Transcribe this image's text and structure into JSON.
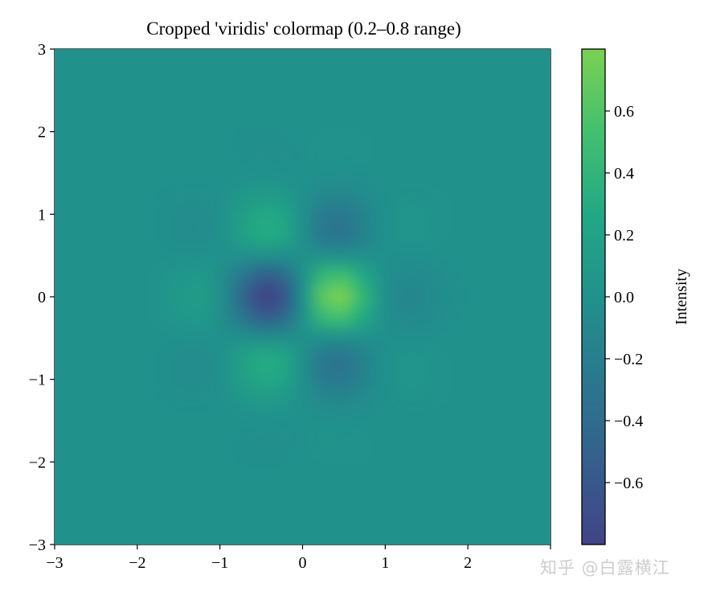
{
  "chart_data": {
    "type": "heatmap",
    "title": "Cropped 'viridis' colormap (0.2–0.8 range)",
    "xlabel": "",
    "ylabel": "",
    "xlim": [
      -3,
      3
    ],
    "ylim": [
      -3,
      3
    ],
    "x_ticks": [
      "−3",
      "−2",
      "−1",
      "0",
      "1",
      "2"
    ],
    "y_ticks": [
      "−3",
      "−2",
      "−1",
      "0",
      "1",
      "2",
      "3"
    ],
    "grid": false,
    "colormap": "viridis",
    "colormap_range": [
      0.2,
      0.8
    ],
    "colormap_stops": [
      "#414487",
      "#355f8d",
      "#2a788e",
      "#21918c",
      "#22a884",
      "#44bf70",
      "#7ad151"
    ],
    "clim": [
      -0.8,
      0.8
    ],
    "colorbar": {
      "label": "Intensity",
      "placement": "right",
      "ticks": [
        -0.6,
        -0.4,
        -0.2,
        0.0,
        0.2,
        0.4,
        0.6
      ],
      "tick_labels": [
        "−0.6",
        "−0.4",
        "−0.2",
        "0.0",
        "0.2",
        "0.4",
        "0.6"
      ]
    },
    "x": [
      -3,
      -2.75,
      -2.5,
      -2.25,
      -2,
      -1.75,
      -1.5,
      -1.25,
      -1,
      -0.75,
      -0.5,
      -0.25,
      0,
      0.25,
      0.5,
      0.75,
      1,
      1.25,
      1.5,
      1.75,
      2,
      2.25,
      2.5,
      2.75,
      3
    ],
    "y": [
      -3,
      -2.75,
      -2.5,
      -2.25,
      -2,
      -1.75,
      -1.5,
      -1.25,
      -1,
      -0.75,
      -0.5,
      -0.25,
      0,
      0.25,
      0.5,
      0.75,
      1,
      1.25,
      1.5,
      1.75,
      2,
      2.25,
      2.5,
      2.75,
      3
    ],
    "z": [
      [
        0,
        0,
        0,
        0,
        0,
        0,
        0,
        0,
        0,
        0,
        0,
        0,
        0,
        0,
        0,
        0,
        0,
        0,
        0,
        0,
        0,
        0,
        0,
        0,
        0
      ],
      [
        0,
        0,
        0,
        0,
        0,
        0,
        0,
        0,
        0,
        0,
        0,
        0,
        0,
        0,
        0,
        0,
        0,
        0,
        0,
        0,
        0,
        0,
        0,
        0,
        0
      ],
      [
        0,
        0,
        0,
        0,
        0,
        0,
        0,
        0,
        0,
        0,
        0,
        0,
        0,
        0,
        0,
        0,
        0,
        0,
        0,
        0,
        0,
        0,
        0,
        0,
        0
      ],
      [
        0,
        0,
        0,
        0,
        0,
        0,
        0,
        0,
        0,
        0,
        0,
        0,
        0,
        0,
        0,
        0,
        0,
        0,
        0,
        0,
        0,
        0,
        0,
        0,
        0
      ],
      [
        0,
        0,
        0,
        0,
        0,
        0,
        0,
        0,
        0,
        -0.01,
        -0.01,
        -0.01,
        0,
        0.01,
        0.01,
        0.01,
        0,
        0,
        0,
        0,
        0,
        0,
        0,
        0,
        0
      ],
      [
        0,
        0,
        0,
        0,
        0,
        0,
        0,
        0,
        0,
        -0.01,
        -0.02,
        -0.02,
        0,
        0.02,
        0.02,
        0.01,
        0,
        0,
        0,
        0,
        0,
        0,
        0,
        0,
        0
      ],
      [
        0,
        0,
        0,
        0,
        0,
        0,
        0,
        0,
        0,
        0.01,
        0.02,
        0.01,
        0,
        -0.01,
        -0.02,
        -0.01,
        0,
        0,
        0,
        0,
        0,
        0,
        0,
        0,
        0
      ],
      [
        0,
        0,
        0,
        0,
        0,
        -0.01,
        -0.02,
        -0.02,
        0.01,
        0.08,
        0.13,
        0.11,
        0,
        -0.11,
        -0.13,
        -0.08,
        -0.01,
        0.02,
        0.02,
        0.01,
        0,
        0,
        0,
        0,
        0
      ],
      [
        0,
        0,
        0,
        0,
        0,
        -0.01,
        -0.04,
        -0.04,
        0.02,
        0.16,
        0.28,
        0.23,
        0,
        -0.23,
        -0.28,
        -0.16,
        -0.02,
        0.04,
        0.04,
        0.01,
        0,
        0,
        0,
        0,
        0
      ],
      [
        0,
        0,
        0,
        0,
        0,
        -0.01,
        -0.04,
        -0.04,
        0.02,
        0.16,
        0.28,
        0.23,
        0,
        -0.23,
        -0.28,
        -0.16,
        -0.02,
        0.04,
        0.04,
        0.01,
        0,
        0,
        0,
        0,
        0
      ],
      [
        0,
        0,
        0,
        0,
        0,
        0,
        0.01,
        0.01,
        0,
        -0.02,
        -0.04,
        -0.04,
        0,
        0.04,
        0.04,
        0.02,
        0,
        -0.01,
        -0.01,
        0,
        0,
        0,
        0,
        0,
        0
      ],
      [
        0,
        0,
        0,
        0,
        0,
        0.03,
        0.07,
        0.08,
        -0.04,
        -0.3,
        -0.53,
        -0.44,
        0,
        0.44,
        0.53,
        0.3,
        0.04,
        -0.08,
        -0.07,
        -0.03,
        0,
        0,
        0,
        0,
        0
      ],
      [
        0,
        0,
        0,
        0,
        0,
        0.04,
        0.1,
        0.12,
        -0.05,
        -0.44,
        -0.78,
        -0.64,
        0,
        0.64,
        0.78,
        0.44,
        0.05,
        -0.12,
        -0.1,
        -0.04,
        -0.01,
        0,
        0,
        0,
        0
      ],
      [
        0,
        0,
        0,
        0,
        0,
        0.03,
        0.07,
        0.08,
        -0.04,
        -0.3,
        -0.53,
        -0.44,
        0,
        0.44,
        0.53,
        0.3,
        0.04,
        -0.08,
        -0.07,
        -0.03,
        0,
        0,
        0,
        0,
        0
      ],
      [
        0,
        0,
        0,
        0,
        0,
        0,
        0.01,
        0.01,
        0,
        -0.02,
        -0.04,
        -0.04,
        0,
        0.04,
        0.04,
        0.02,
        0,
        -0.01,
        -0.01,
        0,
        0,
        0,
        0,
        0,
        0
      ],
      [
        0,
        0,
        0,
        0,
        0,
        -0.01,
        -0.04,
        -0.04,
        0.02,
        0.16,
        0.28,
        0.23,
        0,
        -0.23,
        -0.28,
        -0.16,
        -0.02,
        0.04,
        0.04,
        0.01,
        0,
        0,
        0,
        0,
        0
      ],
      [
        0,
        0,
        0,
        0,
        0,
        -0.01,
        -0.04,
        -0.04,
        0.02,
        0.16,
        0.28,
        0.23,
        0,
        -0.23,
        -0.28,
        -0.16,
        -0.02,
        0.04,
        0.04,
        0.01,
        0,
        0,
        0,
        0,
        0
      ],
      [
        0,
        0,
        0,
        0,
        0,
        -0.01,
        -0.02,
        -0.02,
        0.01,
        0.08,
        0.13,
        0.11,
        0,
        -0.11,
        -0.13,
        -0.08,
        -0.01,
        0.02,
        0.02,
        0.01,
        0,
        0,
        0,
        0,
        0
      ],
      [
        0,
        0,
        0,
        0,
        0,
        0,
        0,
        0,
        0,
        0.01,
        0.02,
        0.01,
        0,
        -0.01,
        -0.02,
        -0.01,
        0,
        0,
        0,
        0,
        0,
        0,
        0,
        0,
        0
      ],
      [
        0,
        0,
        0,
        0,
        0,
        0,
        0,
        0,
        0,
        -0.01,
        -0.02,
        -0.02,
        0,
        0.02,
        0.02,
        0.01,
        0,
        0,
        0,
        0,
        0,
        0,
        0,
        0,
        0
      ],
      [
        0,
        0,
        0,
        0,
        0,
        0,
        0,
        0,
        0,
        -0.01,
        -0.01,
        -0.01,
        0,
        0.01,
        0.01,
        0.01,
        0,
        0,
        0,
        0,
        0,
        0,
        0,
        0,
        0
      ],
      [
        0,
        0,
        0,
        0,
        0,
        0,
        0,
        0,
        0,
        0,
        0,
        0,
        0,
        0,
        0,
        0,
        0,
        0,
        0,
        0,
        0,
        0,
        0,
        0,
        0
      ],
      [
        0,
        0,
        0,
        0,
        0,
        0,
        0,
        0,
        0,
        0,
        0,
        0,
        0,
        0,
        0,
        0,
        0,
        0,
        0,
        0,
        0,
        0,
        0,
        0,
        0
      ],
      [
        0,
        0,
        0,
        0,
        0,
        0,
        0,
        0,
        0,
        0,
        0,
        0,
        0,
        0,
        0,
        0,
        0,
        0,
        0,
        0,
        0,
        0,
        0,
        0,
        0
      ],
      [
        0,
        0,
        0,
        0,
        0,
        0,
        0,
        0,
        0,
        0,
        0,
        0,
        0,
        0,
        0,
        0,
        0,
        0,
        0,
        0,
        0,
        0,
        0,
        0,
        0
      ]
    ]
  },
  "watermark": "知乎 @白露横江"
}
